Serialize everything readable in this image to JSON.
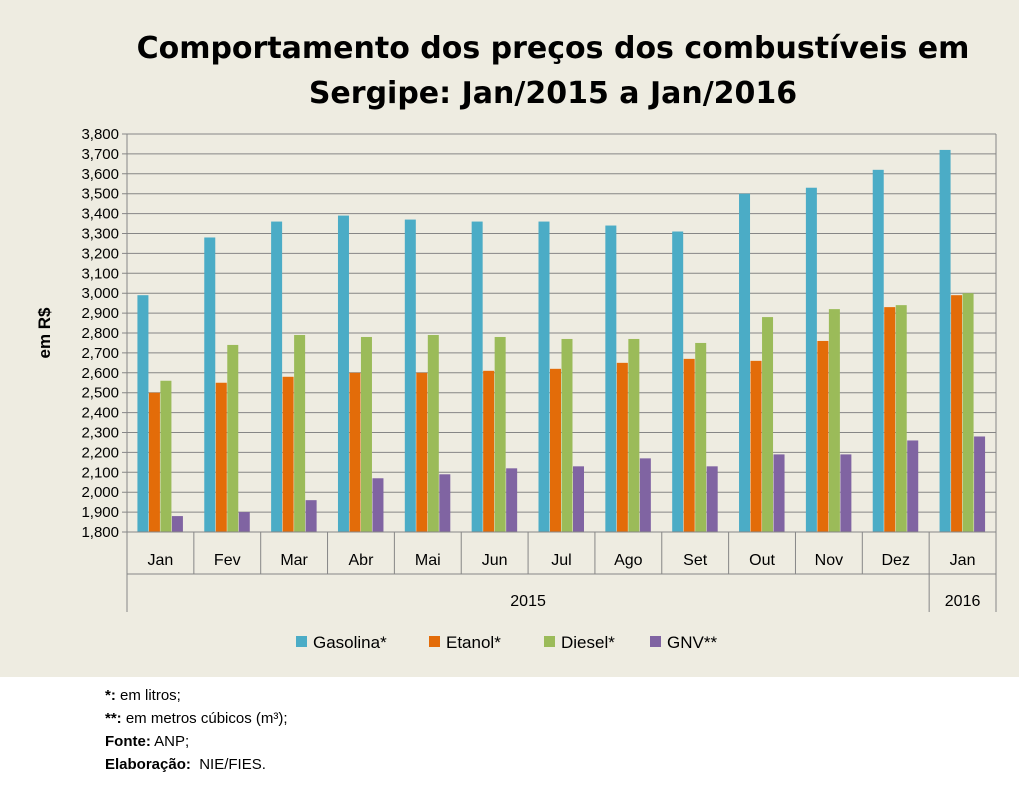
{
  "chart_data": {
    "type": "bar",
    "title_lines": [
      "Comportamento dos preços dos combustíveis em",
      "Sergipe: Jan/2015 a Jan/2016"
    ],
    "ylabel": "em R$",
    "ylim": [
      1.8,
      3.8
    ],
    "yticks": [
      "1,800",
      "1,900",
      "2,000",
      "2,100",
      "2,200",
      "2,300",
      "2,400",
      "2,500",
      "2,600",
      "2,700",
      "2,800",
      "2,900",
      "3,000",
      "3,100",
      "3,200",
      "3,300",
      "3,400",
      "3,500",
      "3,600",
      "3,700",
      "3,800"
    ],
    "categories": [
      "Jan",
      "Fev",
      "Mar",
      "Abr",
      "Mai",
      "Jun",
      "Jul",
      "Ago",
      "Set",
      "Out",
      "Nov",
      "Dez",
      "Jan"
    ],
    "year_groups": [
      {
        "label": "2015",
        "count": 12
      },
      {
        "label": "2016",
        "count": 1
      }
    ],
    "series": [
      {
        "name": "Gasolina*",
        "color": "#4bacc6",
        "values": [
          2.99,
          3.28,
          3.36,
          3.39,
          3.37,
          3.36,
          3.36,
          3.34,
          3.31,
          3.5,
          3.53,
          3.62,
          3.72
        ]
      },
      {
        "name": "Etanol*",
        "color": "#e36c09",
        "values": [
          2.5,
          2.55,
          2.58,
          2.6,
          2.6,
          2.61,
          2.62,
          2.65,
          2.67,
          2.66,
          2.76,
          2.93,
          2.99
        ]
      },
      {
        "name": "Diesel*",
        "color": "#9bbb59",
        "values": [
          2.56,
          2.74,
          2.79,
          2.78,
          2.79,
          2.78,
          2.77,
          2.77,
          2.75,
          2.88,
          2.92,
          2.94,
          3.0
        ]
      },
      {
        "name": "GNV**",
        "color": "#8064a2",
        "values": [
          1.88,
          1.9,
          1.96,
          2.07,
          2.09,
          2.12,
          2.13,
          2.17,
          2.13,
          2.19,
          2.19,
          2.26,
          2.28
        ]
      }
    ]
  },
  "footnotes": [
    {
      "key": "*:",
      "text": " em litros;"
    },
    {
      "key": "**:",
      "text": " em metros cúbicos (m³);"
    },
    {
      "key": "Fonte:",
      "text": " ANP;"
    },
    {
      "key": "Elaboração:",
      "text": "  NIE/FIES."
    }
  ]
}
